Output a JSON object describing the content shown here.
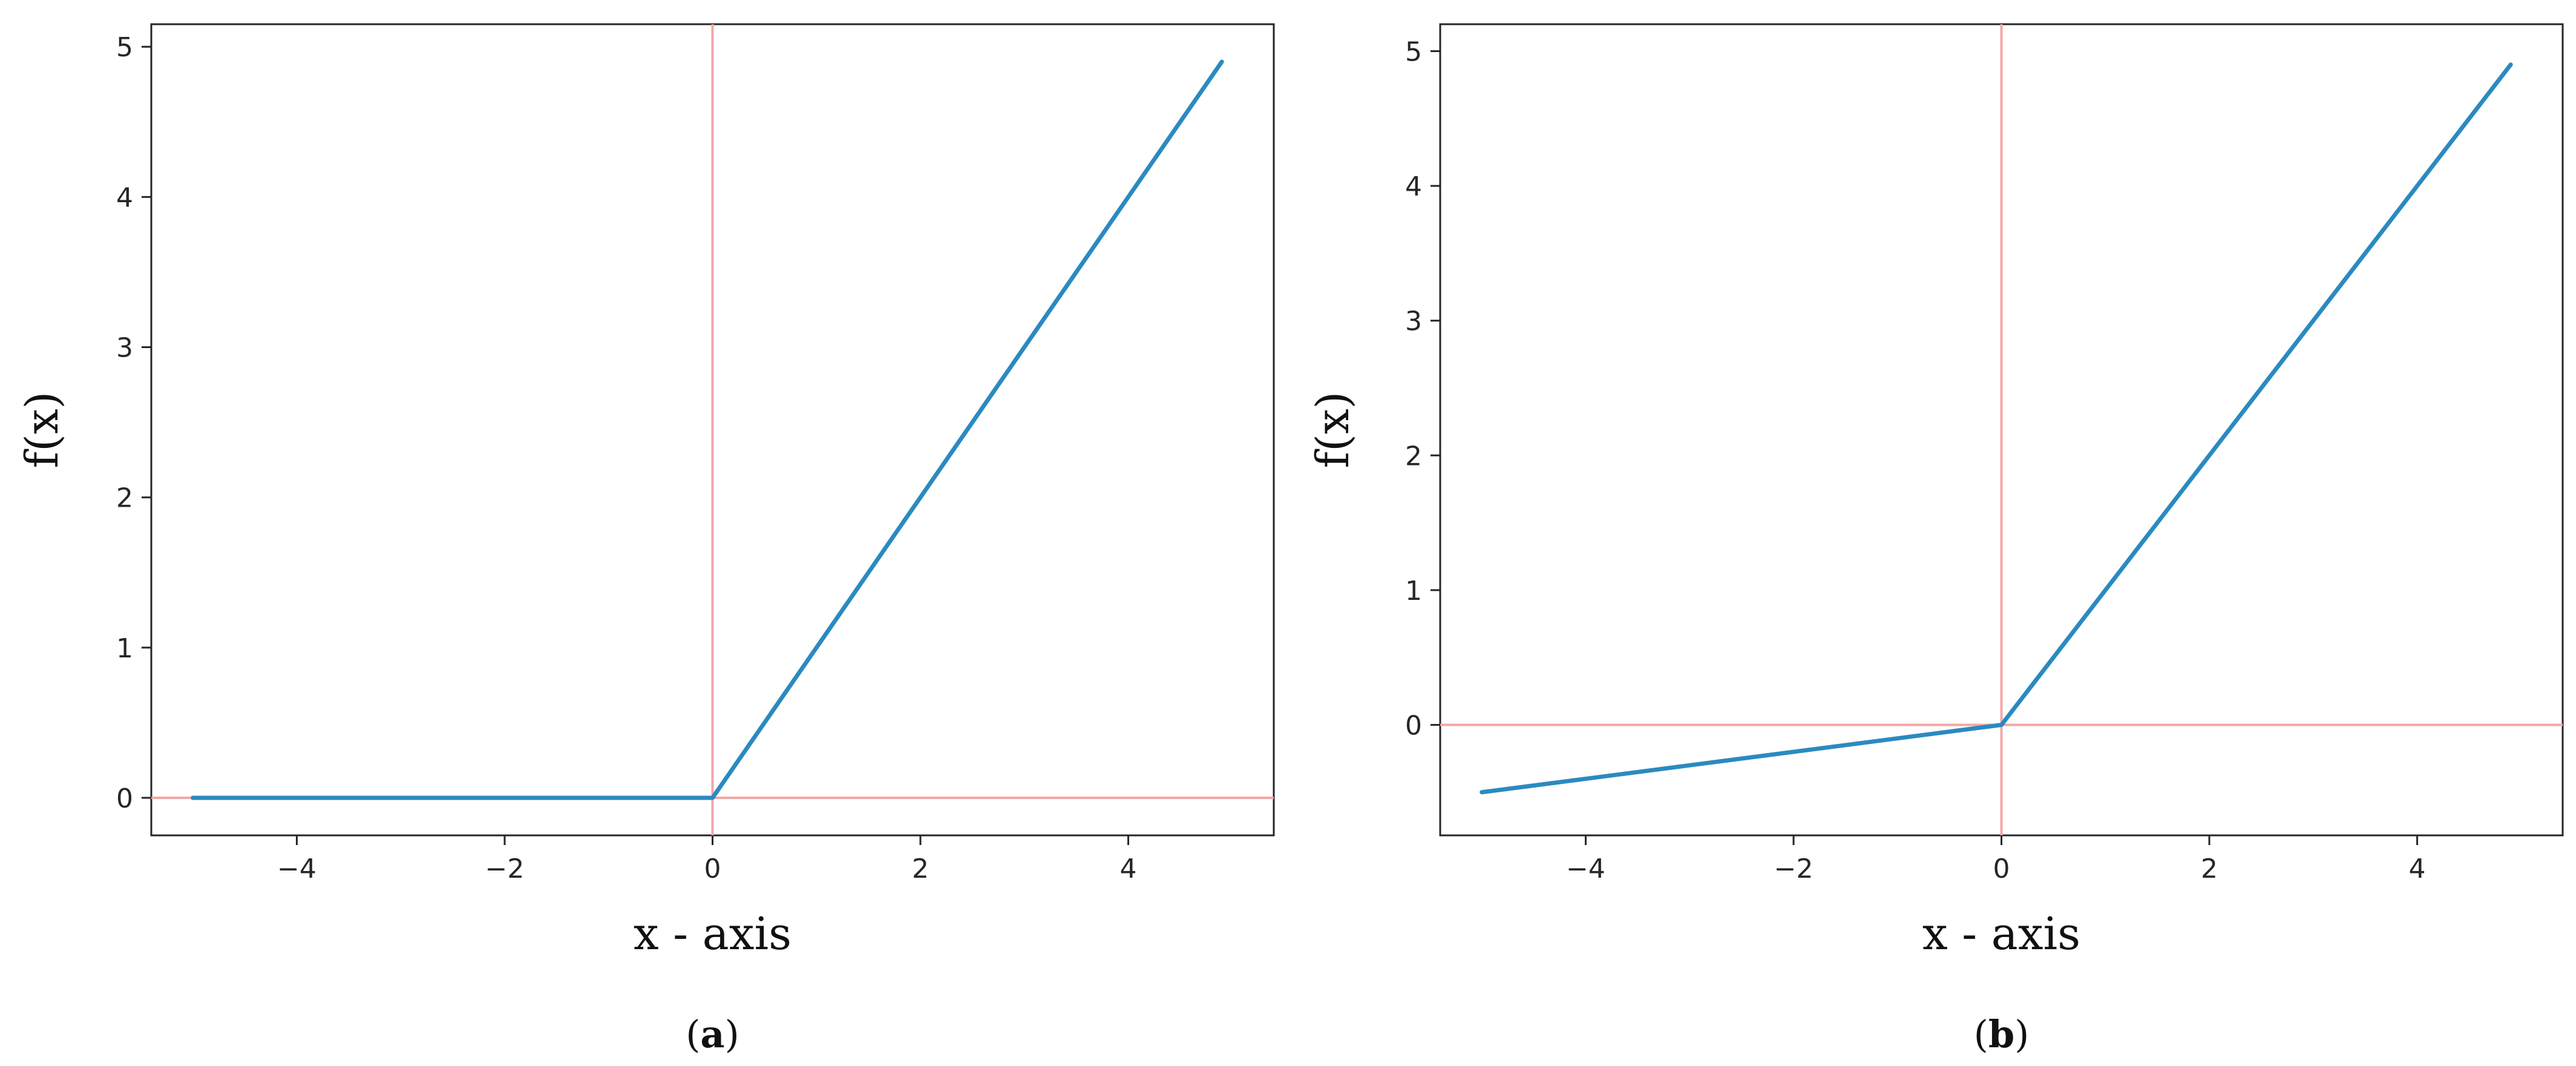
{
  "chart_data": [
    {
      "type": "line",
      "caption": {
        "open": "(",
        "letter": "a",
        "close": ")"
      },
      "xlabel": "x - axis",
      "ylabel": "f(x)",
      "xlim": [
        -5.4,
        5.4
      ],
      "ylim": [
        -0.25,
        5.15
      ],
      "xticks": [
        -4,
        -2,
        0,
        2,
        4
      ],
      "yticks": [
        0,
        1,
        2,
        3,
        4,
        5
      ],
      "xtick_labels": [
        "−4",
        "−2",
        "0",
        "2",
        "4"
      ],
      "ytick_labels": [
        "0",
        "1",
        "2",
        "3",
        "4",
        "5"
      ],
      "reference_lines": {
        "x": 0,
        "y": 0,
        "color": "#f4a6a6"
      },
      "grid": false,
      "series": [
        {
          "color": "#2a8ac0",
          "x": [
            -5,
            0,
            4.9
          ],
          "y": [
            0,
            0,
            4.9
          ]
        }
      ]
    },
    {
      "type": "line",
      "caption": {
        "open": "(",
        "letter": "b",
        "close": ")"
      },
      "xlabel": "x - axis",
      "ylabel": "f(x)",
      "xlim": [
        -5.4,
        5.4
      ],
      "ylim": [
        -0.82,
        5.2
      ],
      "xticks": [
        -4,
        -2,
        0,
        2,
        4
      ],
      "yticks": [
        0,
        1,
        2,
        3,
        4,
        5
      ],
      "xtick_labels": [
        "−4",
        "−2",
        "0",
        "2",
        "4"
      ],
      "ytick_labels": [
        "0",
        "1",
        "2",
        "3",
        "4",
        "5"
      ],
      "reference_lines": {
        "x": 0,
        "y": 0,
        "color": "#f4a6a6"
      },
      "grid": false,
      "series": [
        {
          "color": "#2a8ac0",
          "x": [
            -5,
            0,
            4.9
          ],
          "y": [
            -0.5,
            0,
            4.9
          ]
        }
      ]
    }
  ]
}
